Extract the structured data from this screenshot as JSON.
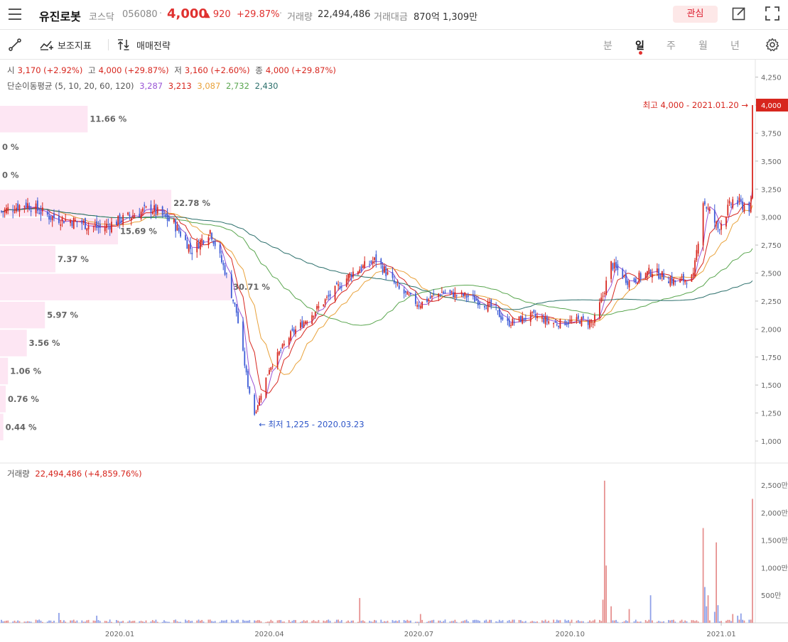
{
  "header": {
    "stock_name": "유진로봇",
    "market": "코스닥",
    "code": "056080",
    "price": "4,000",
    "change": "920",
    "change_rate": "+29.87%",
    "volume_label": "거래량",
    "volume": "22,494,486",
    "amount_label": "거래대금",
    "amount": "870억 1,309만",
    "favorite_label": "관심"
  },
  "toolbar": {
    "indicator_label": "보조지표",
    "strategy_label": "매매전략",
    "periods": [
      "분",
      "일",
      "주",
      "월",
      "년"
    ],
    "active_period": "일"
  },
  "ohlc": {
    "open_label": "시",
    "open": "3,170 (+2.92%)",
    "high_label": "고",
    "high": "4,000 (+29.87%)",
    "low_label": "저",
    "low": "3,160 (+2.60%)",
    "close_label": "종",
    "close": "4,000 (+29.87%)"
  },
  "ma": {
    "label": "단순이동평균 (5, 10, 20, 60, 120)",
    "values": [
      "3,287",
      "3,213",
      "3,087",
      "2,732",
      "2,430"
    ],
    "colors": [
      "#9a55d6",
      "#d7261e",
      "#e9a23b",
      "#5aa64f",
      "#2b6f6b"
    ]
  },
  "volume_panel": {
    "label": "거래량",
    "value": "22,494,486 (+4,859.76%)"
  },
  "colors": {
    "up": "#d7261e",
    "down": "#3c5bd6",
    "profile": "#fde6f3"
  },
  "chart_data": {
    "type": "candlestick",
    "price_axis_ticks": [
      "4,250",
      "4,000",
      "3,750",
      "3,500",
      "3,250",
      "3,000",
      "2,750",
      "2,500",
      "2,250",
      "2,000",
      "1,750",
      "1,500",
      "1,250",
      "1,000"
    ],
    "price_axis_values": [
      4250,
      4000,
      3750,
      3500,
      3250,
      3000,
      2750,
      2500,
      2250,
      2000,
      1750,
      1500,
      1250,
      1000
    ],
    "price_range": [
      870,
      4290
    ],
    "volume_axis_ticks": [
      "2,500만",
      "2,000만",
      "1,500만",
      "1,000만",
      "500만"
    ],
    "volume_axis_values": [
      25000000,
      20000000,
      15000000,
      10000000,
      5000000
    ],
    "volume_range": [
      0,
      29000000
    ],
    "x_ticks": [
      "2020.01",
      "2020.04",
      "2020.07",
      "2020.10",
      "2021.01"
    ],
    "x_tick_dates": [
      "2020-01-01",
      "2020-04-01",
      "2020-07-01",
      "2020-10-01",
      "2021-01-01"
    ],
    "x_range": [
      "2019-10-21",
      "2021-01-20"
    ],
    "current_price": "4,000",
    "current_price_value": 4000,
    "max_label": "최고 4,000 - 2021.01.20",
    "max_date": "2021-01-20",
    "max_value": 4000,
    "min_label": "최저 1,225 - 2020.03.23",
    "min_date": "2020-03-23",
    "min_value": 1225,
    "price_profile": [
      {
        "from": 3750,
        "to": 4000,
        "pct": "11.66 %",
        "value": 11.66
      },
      {
        "from": 3500,
        "to": 3750,
        "pct": "0 %",
        "value": 0
      },
      {
        "from": 3250,
        "to": 3500,
        "pct": "0 %",
        "value": 0
      },
      {
        "from": 3000,
        "to": 3250,
        "pct": "22.78 %",
        "value": 22.78
      },
      {
        "from": 2750,
        "to": 3000,
        "pct": "15.69 %",
        "value": 15.69
      },
      {
        "from": 2500,
        "to": 2750,
        "pct": "7.37 %",
        "value": 7.37
      },
      {
        "from": 2250,
        "to": 2500,
        "pct": "30.71 %",
        "value": 30.71
      },
      {
        "from": 2000,
        "to": 2250,
        "pct": "5.97 %",
        "value": 5.97
      },
      {
        "from": 1750,
        "to": 2000,
        "pct": "3.56 %",
        "value": 3.56
      },
      {
        "from": 1500,
        "to": 1750,
        "pct": "1.06 %",
        "value": 1.06
      },
      {
        "from": 1250,
        "to": 1500,
        "pct": "0.76 %",
        "value": 0.76
      },
      {
        "from": 1000,
        "to": 1250,
        "pct": "0.44 %",
        "value": 0.44
      }
    ],
    "close_anchors": [
      [
        "2019-10-21",
        3050
      ],
      [
        "2019-11-05",
        3120
      ],
      [
        "2019-11-20",
        3000
      ],
      [
        "2019-12-05",
        2960
      ],
      [
        "2019-12-20",
        2900
      ],
      [
        "2020-01-06",
        3000
      ],
      [
        "2020-01-20",
        3080
      ],
      [
        "2020-02-03",
        2940
      ],
      [
        "2020-02-14",
        2700
      ],
      [
        "2020-02-25",
        2880
      ],
      [
        "2020-03-05",
        2520
      ],
      [
        "2020-03-12",
        2150
      ],
      [
        "2020-03-19",
        1500
      ],
      [
        "2020-03-23",
        1240
      ],
      [
        "2020-04-01",
        1650
      ],
      [
        "2020-04-14",
        1950
      ],
      [
        "2020-04-28",
        2150
      ],
      [
        "2020-05-12",
        2360
      ],
      [
        "2020-05-21",
        2500
      ],
      [
        "2020-06-05",
        2620
      ],
      [
        "2020-06-19",
        2350
      ],
      [
        "2020-07-01",
        2220
      ],
      [
        "2020-07-15",
        2330
      ],
      [
        "2020-07-31",
        2290
      ],
      [
        "2020-08-14",
        2200
      ],
      [
        "2020-08-24",
        2050
      ],
      [
        "2020-09-08",
        2120
      ],
      [
        "2020-09-22",
        2050
      ],
      [
        "2020-10-08",
        2080
      ],
      [
        "2020-10-15",
        2050
      ],
      [
        "2020-10-21",
        2300
      ],
      [
        "2020-10-26",
        2580
      ],
      [
        "2020-11-06",
        2420
      ],
      [
        "2020-11-20",
        2520
      ],
      [
        "2020-12-04",
        2420
      ],
      [
        "2020-12-15",
        2460
      ],
      [
        "2020-12-21",
        3150
      ],
      [
        "2020-12-30",
        2900
      ],
      [
        "2021-01-08",
        3150
      ],
      [
        "2021-01-15",
        3100
      ],
      [
        "2021-01-19",
        3080
      ],
      [
        "2021-01-20",
        4000
      ]
    ],
    "volume_spikes": [
      [
        "2019-11-25",
        1800000
      ],
      [
        "2019-12-18",
        1300000
      ],
      [
        "2020-05-26",
        4500000
      ],
      [
        "2020-07-02",
        1600000
      ],
      [
        "2020-10-21",
        4200000
      ],
      [
        "2020-10-22",
        25800000
      ],
      [
        "2020-10-23",
        10400000
      ],
      [
        "2020-10-26",
        3000000
      ],
      [
        "2020-11-06",
        2500000
      ],
      [
        "2020-11-19",
        5000000
      ],
      [
        "2020-12-21",
        17200000
      ],
      [
        "2020-12-22",
        6500000
      ],
      [
        "2020-12-23",
        3000000
      ],
      [
        "2020-12-24",
        5000000
      ],
      [
        "2020-12-28",
        2000000
      ],
      [
        "2020-12-29",
        14600000
      ],
      [
        "2020-12-30",
        3200000
      ],
      [
        "2021-01-08",
        1600000
      ],
      [
        "2021-01-11",
        1300000
      ],
      [
        "2021-01-13",
        1700000
      ],
      [
        "2021-01-20",
        22500000
      ]
    ]
  }
}
